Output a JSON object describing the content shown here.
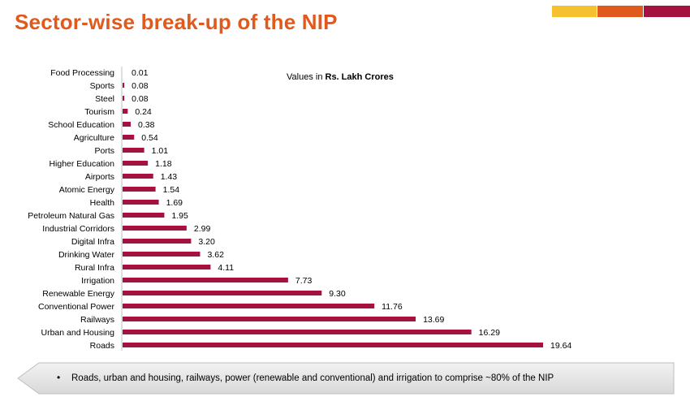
{
  "title": "Sector-wise break-up of the NIP",
  "brand_colors": [
    "#F5C12E",
    "#E05A1E",
    "#A5123F"
  ],
  "units_note": {
    "prefix": "Values in ",
    "bold": "Rs. Lakh Crores"
  },
  "footer_note": "Roads, urban and housing, railways, power (renewable and conventional) and irrigation to comprise ~80% of the NIP",
  "chart_data": {
    "type": "bar",
    "orientation": "horizontal",
    "bar_color": "#A5123F",
    "categories": [
      "Food Processing",
      "Sports",
      "Steel",
      "Tourism",
      "School Education",
      "Agriculture",
      "Ports",
      "Higher Education",
      "Airports",
      "Atomic Energy",
      "Health",
      "Petroleum Natural Gas",
      "Industrial Corridors",
      "Digital Infra",
      "Drinking Water",
      "Rural Infra",
      "Irrigation",
      "Renewable Energy",
      "Conventional Power",
      "Railways",
      "Urban and Housing",
      "Roads"
    ],
    "values": [
      0.01,
      0.08,
      0.08,
      0.24,
      0.38,
      0.54,
      1.01,
      1.18,
      1.43,
      1.54,
      1.69,
      1.95,
      2.99,
      3.2,
      3.62,
      4.11,
      7.73,
      9.3,
      11.76,
      13.69,
      16.29,
      19.64
    ],
    "value_labels": [
      "0.01",
      "0.08",
      "0.08",
      "0.24",
      "0.38",
      "0.54",
      "1.01",
      "1.18",
      "1.43",
      "1.54",
      "1.69",
      "1.95",
      "2.99",
      "3.20",
      "3.62",
      "4.11",
      "7.73",
      "9.30",
      "11.76",
      "13.69",
      "16.29",
      "19.64"
    ],
    "grid": false,
    "legend": "none"
  }
}
